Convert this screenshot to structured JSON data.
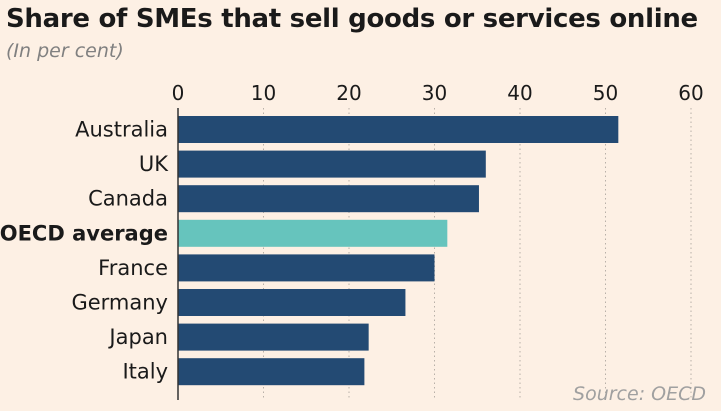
{
  "title": "Share of SMEs that sell goods or services online",
  "subtitle": "(In per cent)",
  "source": "Source: OECD",
  "colors": {
    "bar": "#234a73",
    "highlight": "#66c4bd",
    "grid": "#b8b0a8",
    "axis": "#333333"
  },
  "chart_data": {
    "type": "bar",
    "orientation": "horizontal",
    "title": "Share of SMEs that sell goods or services online",
    "subtitle": "(In per cent)",
    "xlabel": "",
    "ylabel": "",
    "xlim": [
      0,
      60
    ],
    "xticks": [
      0,
      10,
      20,
      30,
      40,
      50,
      60
    ],
    "grid": true,
    "categories": [
      "Australia",
      "UK",
      "Canada",
      "OECD average",
      "France",
      "Germany",
      "Japan",
      "Italy"
    ],
    "values": [
      51.5,
      36,
      35.2,
      31.5,
      30,
      26.6,
      22.3,
      21.8
    ],
    "highlight": "OECD average"
  }
}
